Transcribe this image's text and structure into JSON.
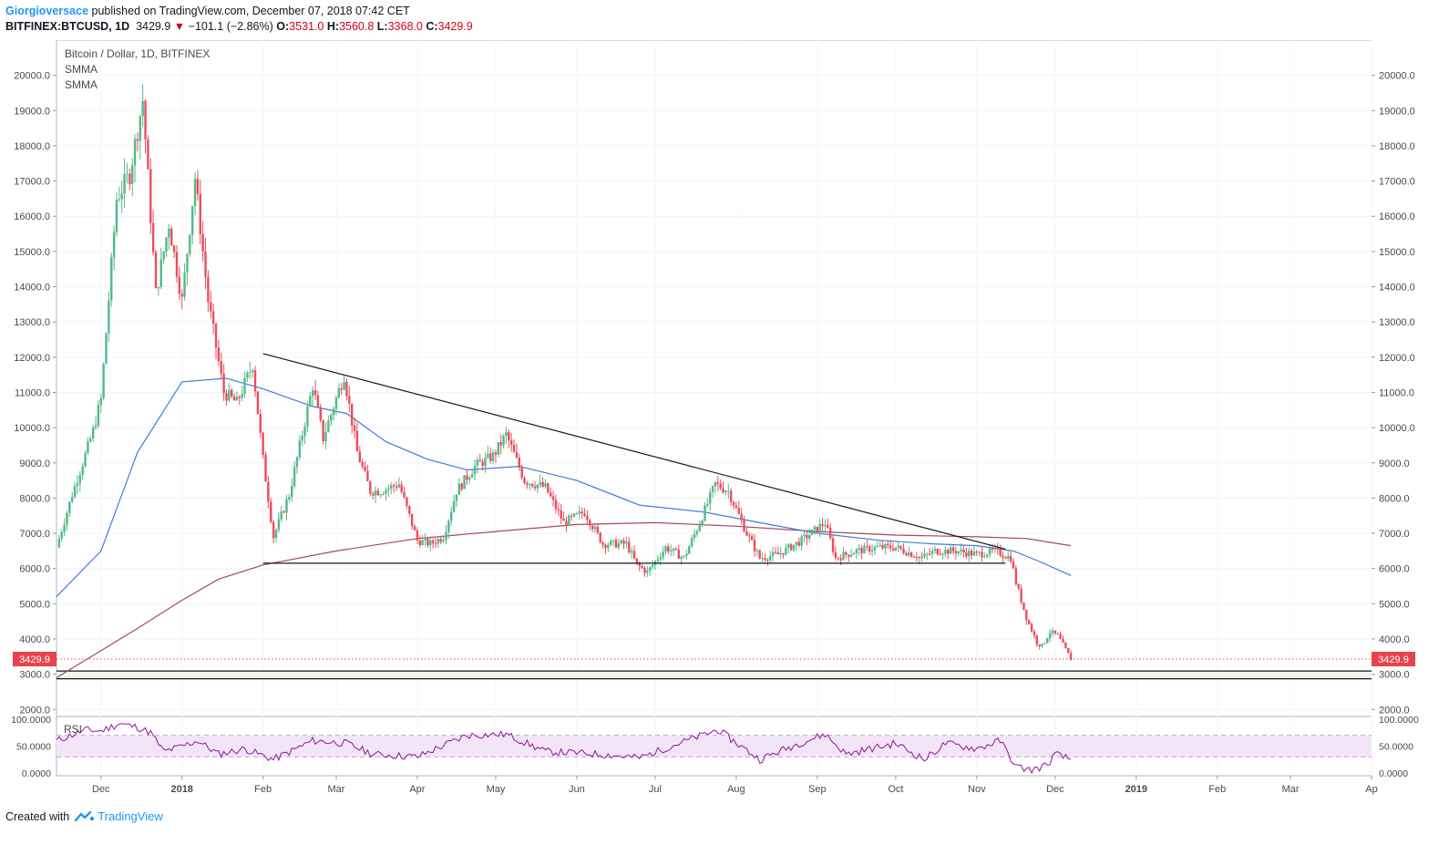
{
  "header": {
    "author": "Giorgioversace",
    "published": "published on TradingView.com, December 07, 2018 07:42 CET",
    "symbol": "BITFINEX:BTCUSD, 1D",
    "last": "3429.9",
    "change": "−101.1 (−2.86%)",
    "o_label": "O:",
    "o_value": "3531.0",
    "h_label": "H:",
    "h_value": "3560.8",
    "l_label": "L:",
    "l_value": "3368.0",
    "c_label": "C:",
    "c_value": "3429.9"
  },
  "legend": {
    "title": "Bitcoin / Dollar, 1D, BITFINEX",
    "ind1": "SMMA",
    "ind2": "SMMA"
  },
  "footer": {
    "created": "Created with",
    "brand": "TradingView"
  },
  "colors": {
    "up": "#53b987",
    "down": "#eb4d5c",
    "smma_fast": "#3d7ed8",
    "smma_slow": "#a5485e",
    "rsi": "#8e1599",
    "rsi_band": "#f3e5f8",
    "trendline": "#131722",
    "last_price": "#e8434c"
  },
  "chart_data": {
    "type": "candlestick",
    "y_ticks": [
      2000,
      3000,
      4000,
      5000,
      6000,
      7000,
      8000,
      9000,
      10000,
      11000,
      12000,
      13000,
      14000,
      15000,
      16000,
      17000,
      18000,
      19000,
      20000
    ],
    "y_tick_labels": [
      "2000.0",
      "3000.0",
      "4000.0",
      "5000.0",
      "6000.0",
      "7000.0",
      "8000.0",
      "9000.0",
      "10000.0",
      "11000.0",
      "12000.0",
      "13000.0",
      "14000.0",
      "15000.0",
      "16000.0",
      "17000.0",
      "18000.0",
      "19000.0",
      "20000.0"
    ],
    "ylim": [
      1800,
      21000
    ],
    "x_labels": [
      {
        "label": "Dec",
        "date": "2017-12-01",
        "bold": false
      },
      {
        "label": "2018",
        "date": "2018-01-01",
        "bold": true
      },
      {
        "label": "Feb",
        "date": "2018-02-01",
        "bold": false
      },
      {
        "label": "Mar",
        "date": "2018-03-01",
        "bold": false
      },
      {
        "label": "Apr",
        "date": "2018-04-01",
        "bold": false
      },
      {
        "label": "May",
        "date": "2018-05-01",
        "bold": false
      },
      {
        "label": "Jun",
        "date": "2018-06-01",
        "bold": false
      },
      {
        "label": "Jul",
        "date": "2018-07-01",
        "bold": false
      },
      {
        "label": "Aug",
        "date": "2018-08-01",
        "bold": false
      },
      {
        "label": "Sep",
        "date": "2018-09-01",
        "bold": false
      },
      {
        "label": "Oct",
        "date": "2018-10-01",
        "bold": false
      },
      {
        "label": "Nov",
        "date": "2018-11-01",
        "bold": false
      },
      {
        "label": "Dec",
        "date": "2018-12-01",
        "bold": false
      },
      {
        "label": "2019",
        "date": "2019-01-01",
        "bold": true
      },
      {
        "label": "Feb",
        "date": "2019-02-01",
        "bold": false
      },
      {
        "label": "Mar",
        "date": "2019-03-01",
        "bold": false
      },
      {
        "label": "Ap",
        "date": "2019-04-01",
        "bold": false
      }
    ],
    "last_price": 3429.9,
    "last_price_label": "3429.9",
    "price_path": [
      [
        "2017-11-14",
        6600
      ],
      [
        "2017-11-20",
        8100
      ],
      [
        "2017-11-28",
        9900
      ],
      [
        "2017-12-01",
        10800
      ],
      [
        "2017-12-07",
        16500
      ],
      [
        "2017-12-12",
        17200
      ],
      [
        "2017-12-17",
        19300
      ],
      [
        "2017-12-22",
        13800
      ],
      [
        "2017-12-27",
        15800
      ],
      [
        "2018-01-01",
        13600
      ],
      [
        "2018-01-06",
        17100
      ],
      [
        "2018-01-11",
        13600
      ],
      [
        "2018-01-17",
        11000
      ],
      [
        "2018-01-22",
        10700
      ],
      [
        "2018-01-28",
        11800
      ],
      [
        "2018-02-01",
        9100
      ],
      [
        "2018-02-05",
        6900
      ],
      [
        "2018-02-11",
        8100
      ],
      [
        "2018-02-20",
        11200
      ],
      [
        "2018-02-24",
        9700
      ],
      [
        "2018-03-04",
        11500
      ],
      [
        "2018-03-09",
        9300
      ],
      [
        "2018-03-14",
        8200
      ],
      [
        "2018-03-18",
        8200
      ],
      [
        "2018-03-25",
        8400
      ],
      [
        "2018-04-01",
        6800
      ],
      [
        "2018-04-06",
        6700
      ],
      [
        "2018-04-11",
        6900
      ],
      [
        "2018-04-16",
        8200
      ],
      [
        "2018-04-23",
        8900
      ],
      [
        "2018-04-30",
        9200
      ],
      [
        "2018-05-05",
        9800
      ],
      [
        "2018-05-12",
        8500
      ],
      [
        "2018-05-20",
        8300
      ],
      [
        "2018-05-27",
        7300
      ],
      [
        "2018-06-04",
        7600
      ],
      [
        "2018-06-11",
        6700
      ],
      [
        "2018-06-20",
        6700
      ],
      [
        "2018-06-24",
        6100
      ],
      [
        "2018-06-28",
        5900
      ],
      [
        "2018-07-05",
        6600
      ],
      [
        "2018-07-12",
        6300
      ],
      [
        "2018-07-18",
        7300
      ],
      [
        "2018-07-24",
        8400
      ],
      [
        "2018-07-29",
        8200
      ],
      [
        "2018-08-05",
        7000
      ],
      [
        "2018-08-10",
        6300
      ],
      [
        "2018-08-17",
        6400
      ],
      [
        "2018-08-26",
        6800
      ],
      [
        "2018-09-04",
        7300
      ],
      [
        "2018-09-08",
        6300
      ],
      [
        "2018-09-16",
        6500
      ],
      [
        "2018-09-24",
        6600
      ],
      [
        "2018-10-01",
        6600
      ],
      [
        "2018-10-11",
        6300
      ],
      [
        "2018-10-16",
        6500
      ],
      [
        "2018-10-24",
        6500
      ],
      [
        "2018-11-01",
        6400
      ],
      [
        "2018-11-08",
        6500
      ],
      [
        "2018-11-14",
        6300
      ],
      [
        "2018-11-16",
        5600
      ],
      [
        "2018-11-20",
        4600
      ],
      [
        "2018-11-24",
        3900
      ],
      [
        "2018-11-26",
        3800
      ],
      [
        "2018-11-29",
        4200
      ],
      [
        "2018-12-02",
        4100
      ],
      [
        "2018-12-05",
        3700
      ],
      [
        "2018-12-07",
        3430
      ]
    ],
    "smma_fast": [
      [
        "2017-11-14",
        5200
      ],
      [
        "2017-12-01",
        6500
      ],
      [
        "2017-12-15",
        9300
      ],
      [
        "2018-01-01",
        11300
      ],
      [
        "2018-01-18",
        11400
      ],
      [
        "2018-02-01",
        11100
      ],
      [
        "2018-02-20",
        10600
      ],
      [
        "2018-03-05",
        10400
      ],
      [
        "2018-03-20",
        9600
      ],
      [
        "2018-04-05",
        9100
      ],
      [
        "2018-04-20",
        8800
      ],
      [
        "2018-05-10",
        8900
      ],
      [
        "2018-06-01",
        8500
      ],
      [
        "2018-06-25",
        7800
      ],
      [
        "2018-07-20",
        7600
      ],
      [
        "2018-08-10",
        7300
      ],
      [
        "2018-09-01",
        7000
      ],
      [
        "2018-09-25",
        6800
      ],
      [
        "2018-10-15",
        6700
      ],
      [
        "2018-11-01",
        6650
      ],
      [
        "2018-11-15",
        6500
      ],
      [
        "2018-11-25",
        6200
      ],
      [
        "2018-12-07",
        5800
      ]
    ],
    "smma_slow": [
      [
        "2017-11-14",
        2900
      ],
      [
        "2017-12-15",
        4300
      ],
      [
        "2018-01-01",
        5100
      ],
      [
        "2018-01-15",
        5700
      ],
      [
        "2018-02-01",
        6100
      ],
      [
        "2018-03-01",
        6500
      ],
      [
        "2018-04-01",
        6850
      ],
      [
        "2018-05-01",
        7050
      ],
      [
        "2018-06-01",
        7250
      ],
      [
        "2018-07-01",
        7300
      ],
      [
        "2018-08-01",
        7200
      ],
      [
        "2018-09-01",
        7050
      ],
      [
        "2018-10-01",
        6950
      ],
      [
        "2018-11-01",
        6900
      ],
      [
        "2018-11-20",
        6850
      ],
      [
        "2018-12-07",
        6650
      ]
    ],
    "trendlines": [
      {
        "name": "descending",
        "from": [
          "2018-02-01",
          12100
        ],
        "to": [
          "2018-11-12",
          6550
        ]
      },
      {
        "name": "support",
        "from": [
          "2018-02-01",
          6150
        ],
        "to": [
          "2018-11-12",
          6150
        ]
      }
    ],
    "support_band": [
      2870,
      3090
    ],
    "rsi": {
      "label": "RSI",
      "y_ticks": [
        0,
        50,
        100
      ],
      "y_tick_labels": [
        "0.0000",
        "50.0000",
        "100.0000"
      ],
      "bands": [
        30,
        70
      ],
      "ylim": [
        -5,
        105
      ],
      "points": [
        [
          "2017-11-14",
          60
        ],
        [
          "2017-11-25",
          80
        ],
        [
          "2017-12-01",
          78
        ],
        [
          "2017-12-08",
          92
        ],
        [
          "2017-12-15",
          85
        ],
        [
          "2017-12-20",
          75
        ],
        [
          "2017-12-25",
          40
        ],
        [
          "2017-12-31",
          48
        ],
        [
          "2018-01-07",
          60
        ],
        [
          "2018-01-15",
          35
        ],
        [
          "2018-01-25",
          45
        ],
        [
          "2018-02-05",
          25
        ],
        [
          "2018-02-20",
          60
        ],
        [
          "2018-03-05",
          55
        ],
        [
          "2018-03-15",
          35
        ],
        [
          "2018-04-01",
          30
        ],
        [
          "2018-04-20",
          70
        ],
        [
          "2018-05-05",
          72
        ],
        [
          "2018-05-20",
          40
        ],
        [
          "2018-06-10",
          35
        ],
        [
          "2018-06-25",
          28
        ],
        [
          "2018-07-10",
          55
        ],
        [
          "2018-07-25",
          80
        ],
        [
          "2018-08-10",
          25
        ],
        [
          "2018-08-25",
          55
        ],
        [
          "2018-09-04",
          72
        ],
        [
          "2018-09-12",
          35
        ],
        [
          "2018-10-01",
          55
        ],
        [
          "2018-10-12",
          25
        ],
        [
          "2018-10-20",
          55
        ],
        [
          "2018-11-01",
          45
        ],
        [
          "2018-11-10",
          60
        ],
        [
          "2018-11-16",
          12
        ],
        [
          "2018-11-22",
          5
        ],
        [
          "2018-11-28",
          15
        ],
        [
          "2018-12-01",
          35
        ],
        [
          "2018-12-07",
          25
        ]
      ]
    }
  }
}
